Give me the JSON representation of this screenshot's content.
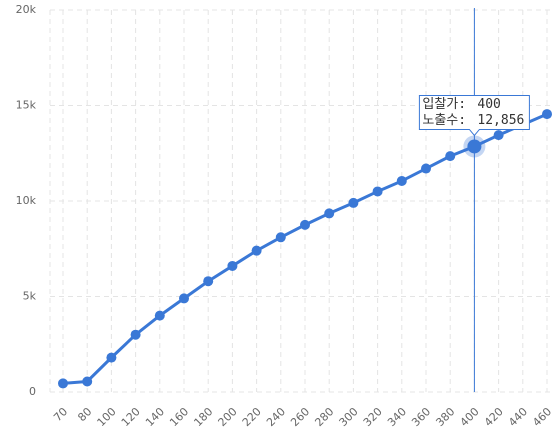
{
  "chart_data": {
    "type": "line",
    "categories": [
      "70",
      "80",
      "100",
      "120",
      "140",
      "160",
      "180",
      "200",
      "220",
      "240",
      "260",
      "280",
      "300",
      "320",
      "340",
      "360",
      "380",
      "400",
      "420",
      "440",
      "460"
    ],
    "series": [
      {
        "name": "노출수:",
        "color": "#3a78d6",
        "values": [
          450,
          550,
          1800,
          3000,
          4000,
          4900,
          5800,
          6600,
          7400,
          8100,
          8750,
          9350,
          9900,
          10500,
          11050,
          11700,
          12350,
          12856,
          13450,
          14000,
          14550
        ],
        "value_labels": [
          null,
          null,
          null,
          null,
          null,
          null,
          null,
          null,
          null,
          null,
          null,
          null,
          null,
          null,
          null,
          null,
          null,
          "12,856",
          null,
          null,
          null
        ]
      }
    ],
    "x_label": "입찰가:",
    "highlight_index": 17,
    "ylim": [
      0,
      20000
    ],
    "yticks": [
      0,
      {
        "value": 5000,
        "label": "5k"
      },
      {
        "value": 10000,
        "label": "10k"
      },
      {
        "value": 15000,
        "label": "15k"
      },
      {
        "value": 20000,
        "label": "20k"
      }
    ],
    "grid": true
  }
}
